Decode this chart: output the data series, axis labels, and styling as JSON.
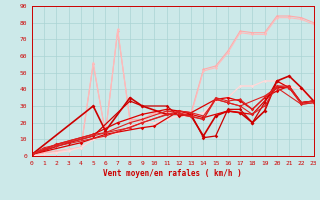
{
  "xlabel": "Vent moyen/en rafales ( km/h )",
  "xlim": [
    0,
    23
  ],
  "ylim": [
    0,
    90
  ],
  "xticks": [
    0,
    1,
    2,
    3,
    4,
    5,
    6,
    7,
    8,
    9,
    10,
    11,
    12,
    13,
    14,
    15,
    16,
    17,
    18,
    19,
    20,
    21,
    22,
    23
  ],
  "yticks": [
    0,
    10,
    20,
    30,
    40,
    50,
    60,
    70,
    80,
    90
  ],
  "bg_color": "#cce9e9",
  "grid_color": "#aad4d4",
  "series": [
    {
      "x": [
        0,
        1,
        2,
        3,
        4,
        5,
        6,
        7,
        8,
        9,
        10,
        11,
        12,
        13,
        14,
        15,
        16,
        17,
        18,
        19,
        20,
        21,
        22,
        23
      ],
      "y": [
        0,
        2,
        3,
        4,
        5,
        55,
        14,
        75,
        22,
        22,
        26,
        26,
        27,
        26,
        52,
        54,
        63,
        75,
        74,
        74,
        84,
        84,
        83,
        80
      ],
      "color": "#ffaaaa",
      "lw": 0.8,
      "ms": 1.5
    },
    {
      "x": [
        0,
        1,
        2,
        3,
        4,
        5,
        6,
        7,
        8,
        9,
        10,
        11,
        12,
        13,
        14,
        15,
        16,
        17,
        18,
        19,
        20,
        21,
        22,
        23
      ],
      "y": [
        0,
        2,
        3,
        4,
        5,
        56,
        13,
        76,
        21,
        21,
        25,
        25,
        26,
        25,
        51,
        53,
        62,
        74,
        73,
        73,
        83,
        83,
        82,
        79
      ],
      "color": "#ffbbbb",
      "lw": 0.8,
      "ms": 1.5
    },
    {
      "x": [
        0,
        1,
        2,
        3,
        4,
        5,
        6,
        7,
        8,
        9,
        10,
        11,
        12,
        13,
        14,
        15,
        16,
        17,
        18,
        19,
        20,
        21,
        22,
        23
      ],
      "y": [
        0,
        1,
        2,
        4,
        5,
        10,
        12,
        15,
        17,
        20,
        20,
        22,
        24,
        24,
        26,
        34,
        35,
        42,
        42,
        45,
        45,
        42,
        40,
        33
      ],
      "color": "#ffcccc",
      "lw": 0.8,
      "ms": 1.5
    },
    {
      "x": [
        0,
        1,
        2,
        3,
        4,
        5,
        6,
        7,
        8,
        9,
        10,
        11,
        12,
        13,
        14,
        15,
        16,
        17,
        18,
        19,
        20,
        21,
        22,
        23
      ],
      "y": [
        0,
        1,
        2,
        3,
        5,
        10,
        12,
        14,
        18,
        20,
        20,
        22,
        24,
        24,
        26,
        33,
        35,
        42,
        42,
        45,
        45,
        42,
        40,
        33
      ],
      "color": "#ffdddd",
      "lw": 0.8,
      "ms": 1.5
    },
    {
      "x": [
        0,
        5,
        6,
        8,
        9,
        11,
        12,
        13,
        14,
        15,
        16,
        17,
        18,
        19,
        20,
        21,
        22,
        23
      ],
      "y": [
        1,
        30,
        15,
        35,
        30,
        25,
        25,
        24,
        12,
        24,
        27,
        26,
        20,
        27,
        45,
        48,
        41,
        33
      ],
      "color": "#cc0000",
      "lw": 1.2,
      "ms": 2.0
    },
    {
      "x": [
        0,
        3,
        5,
        8,
        9,
        11,
        12,
        13,
        14,
        15,
        16,
        17,
        18,
        19,
        20,
        21,
        22,
        23
      ],
      "y": [
        1,
        8,
        12,
        33,
        30,
        30,
        24,
        25,
        11,
        12,
        28,
        28,
        20,
        32,
        45,
        41,
        32,
        33
      ],
      "color": "#cc0000",
      "lw": 0.9,
      "ms": 1.8
    },
    {
      "x": [
        0,
        4,
        6,
        9,
        10,
        12,
        13,
        14,
        16,
        17,
        18,
        20,
        21,
        22,
        23
      ],
      "y": [
        1,
        8,
        13,
        17,
        18,
        27,
        25,
        23,
        27,
        26,
        25,
        41,
        41,
        32,
        33
      ],
      "color": "#dd0000",
      "lw": 0.9,
      "ms": 1.8
    },
    {
      "x": [
        0,
        2,
        5,
        7,
        9,
        11,
        13,
        15,
        16,
        17,
        18,
        19,
        20,
        21,
        22,
        23
      ],
      "y": [
        1,
        7,
        13,
        20,
        25,
        28,
        26,
        34,
        35,
        33,
        28,
        35,
        39,
        42,
        32,
        33
      ],
      "color": "#dd0000",
      "lw": 0.9,
      "ms": 1.8
    },
    {
      "x": [
        0,
        2,
        6,
        9,
        11,
        12,
        14,
        15,
        16,
        17,
        18,
        20,
        21,
        22,
        23
      ],
      "y": [
        1,
        6,
        12,
        20,
        25,
        25,
        22,
        35,
        33,
        34,
        28,
        42,
        42,
        32,
        33
      ],
      "color": "#dd2222",
      "lw": 0.8,
      "ms": 1.5
    },
    {
      "x": [
        0,
        1,
        4,
        6,
        8,
        9,
        12,
        13,
        14,
        15,
        16,
        17,
        19,
        20,
        22,
        23
      ],
      "y": [
        1,
        5,
        10,
        14,
        17,
        20,
        27,
        26,
        24,
        34,
        32,
        30,
        36,
        41,
        31,
        32
      ],
      "color": "#dd2222",
      "lw": 0.8,
      "ms": 1.5
    },
    {
      "x": [
        0,
        2,
        5,
        6,
        8,
        9,
        11,
        12,
        13,
        14,
        15,
        16,
        17,
        18,
        19,
        20,
        21,
        22,
        23
      ],
      "y": [
        1,
        7,
        13,
        14,
        20,
        22,
        27,
        26,
        24,
        22,
        34,
        32,
        30,
        25,
        30,
        42,
        41,
        31,
        32
      ],
      "color": "#dd2222",
      "lw": 0.8,
      "ms": 1.5
    }
  ]
}
